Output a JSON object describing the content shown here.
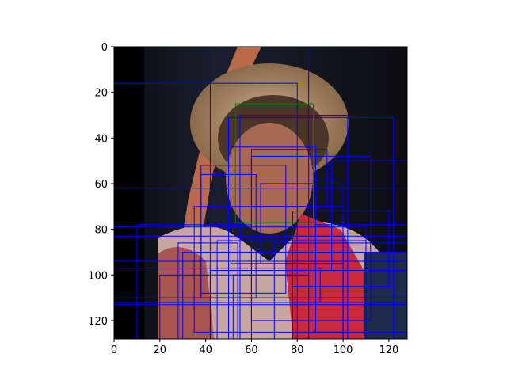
{
  "chart_data": {
    "type": "image-with-bounding-boxes",
    "image_size": [
      128,
      128
    ],
    "xlim": [
      0,
      128
    ],
    "ylim": [
      128,
      0
    ],
    "x_ticks": [
      0,
      20,
      40,
      60,
      80,
      100,
      120
    ],
    "y_ticks": [
      0,
      20,
      40,
      60,
      80,
      100,
      120
    ],
    "x_tick_labels": [
      "0",
      "20",
      "40",
      "60",
      "80",
      "100",
      "120"
    ],
    "y_tick_labels": [
      "0",
      "20",
      "40",
      "60",
      "80",
      "100",
      "120"
    ],
    "image_description_hidden": true,
    "green_boxes": [
      {
        "x0": 53,
        "y0": 25,
        "x1": 87,
        "y1": 77
      }
    ],
    "blue_boxes": [
      {
        "x0": 42,
        "y0": 0,
        "x1": 128,
        "y1": 128
      },
      {
        "x0": 85,
        "y0": 0,
        "x1": 128,
        "y1": 128
      },
      {
        "x0": 0,
        "y0": 16,
        "x1": 80,
        "y1": 128
      },
      {
        "x0": 50,
        "y0": 31,
        "x1": 122,
        "y1": 128
      },
      {
        "x0": 55,
        "y0": 30,
        "x1": 102,
        "y1": 128
      },
      {
        "x0": 51,
        "y0": 44,
        "x1": 88,
        "y1": 95
      },
      {
        "x0": 38,
        "y0": 52,
        "x1": 75,
        "y1": 108
      },
      {
        "x0": 60,
        "y0": 48,
        "x1": 112,
        "y1": 120
      },
      {
        "x0": 95,
        "y0": 50,
        "x1": 128,
        "y1": 98
      },
      {
        "x0": 0,
        "y0": 62,
        "x1": 128,
        "y1": 128
      },
      {
        "x0": 78,
        "y0": 72,
        "x1": 120,
        "y1": 105
      },
      {
        "x0": 0,
        "y0": 79,
        "x1": 110,
        "y1": 128
      },
      {
        "x0": 0,
        "y0": 83,
        "x1": 128,
        "y1": 113
      },
      {
        "x0": 30,
        "y0": 90,
        "x1": 128,
        "y1": 128
      },
      {
        "x0": 0,
        "y0": 94,
        "x1": 128,
        "y1": 110
      },
      {
        "x0": 20,
        "y0": 100,
        "x1": 85,
        "y1": 128
      },
      {
        "x0": 45,
        "y0": 85,
        "x1": 110,
        "y1": 128
      },
      {
        "x0": 64,
        "y0": 60,
        "x1": 100,
        "y1": 95
      },
      {
        "x0": 38,
        "y0": 56,
        "x1": 62,
        "y1": 110
      },
      {
        "x0": 70,
        "y0": 86,
        "x1": 128,
        "y1": 128
      },
      {
        "x0": 0,
        "y0": 112,
        "x1": 128,
        "y1": 128
      },
      {
        "x0": 0,
        "y0": 97,
        "x1": 90,
        "y1": 112
      },
      {
        "x0": 35,
        "y0": 70,
        "x1": 100,
        "y1": 125
      },
      {
        "x0": 88,
        "y0": 78,
        "x1": 128,
        "y1": 125
      },
      {
        "x0": 10,
        "y0": 78,
        "x1": 60,
        "y1": 128
      },
      {
        "x0": 42,
        "y0": 98,
        "x1": 128,
        "y1": 128
      },
      {
        "x0": 60,
        "y0": 45,
        "x1": 93,
        "y1": 70
      },
      {
        "x0": 100,
        "y0": 82,
        "x1": 128,
        "y1": 128
      },
      {
        "x0": 28,
        "y0": 86,
        "x1": 54,
        "y1": 128
      },
      {
        "x0": 52,
        "y0": 100,
        "x1": 78,
        "y1": 128
      }
    ],
    "colors": {
      "blue_box": "#0000ff",
      "green_box": "#008000",
      "background": "#ffffff",
      "axis": "#000000"
    }
  }
}
